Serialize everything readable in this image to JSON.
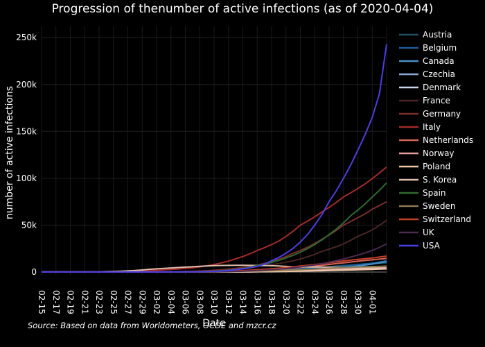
{
  "chart_data": {
    "type": "line",
    "title": "Progression of thenumber of active infections (as of 2020-04-04)",
    "xlabel": "Date",
    "ylabel": "number of active infections",
    "source": "Source: Based on data from Worldometers, OCDE and mzcr.cz",
    "x": [
      "02-15",
      "02-16",
      "02-17",
      "02-18",
      "02-19",
      "02-20",
      "02-21",
      "02-22",
      "02-23",
      "02-24",
      "02-25",
      "02-26",
      "02-27",
      "02-28",
      "02-29",
      "03-01",
      "03-02",
      "03-03",
      "03-04",
      "03-05",
      "03-06",
      "03-07",
      "03-08",
      "03-09",
      "03-10",
      "03-11",
      "03-12",
      "03-13",
      "03-14",
      "03-15",
      "03-16",
      "03-17",
      "03-18",
      "03-19",
      "03-20",
      "03-21",
      "03-22",
      "03-23",
      "03-24",
      "03-25",
      "03-26",
      "03-27",
      "03-28",
      "03-29",
      "03-30",
      "03-31",
      "04-01",
      "04-02",
      "04-03"
    ],
    "x_tick_labels": [
      "02-15",
      "02-17",
      "02-19",
      "02-21",
      "02-23",
      "02-25",
      "02-27",
      "02-29",
      "03-02",
      "03-04",
      "03-06",
      "03-08",
      "03-10",
      "03-12",
      "03-14",
      "03-16",
      "03-18",
      "03-20",
      "03-22",
      "03-24",
      "03-26",
      "03-28",
      "03-30",
      "04-01"
    ],
    "y_ticks": [
      0,
      50000,
      100000,
      150000,
      200000,
      250000
    ],
    "y_tick_labels": [
      "0",
      "50k",
      "100k",
      "150k",
      "200k",
      "250k"
    ],
    "ylim": [
      -3000,
      262000
    ],
    "grid": true,
    "legend_position": "right",
    "series": [
      {
        "name": "Austria",
        "color": "#1f4e5f",
        "key": [
          [
            0,
            0
          ],
          [
            18,
            10
          ],
          [
            25,
            150
          ],
          [
            30,
            800
          ],
          [
            36,
            3000
          ],
          [
            41,
            6500
          ],
          [
            44,
            8000
          ],
          [
            46,
            9200
          ],
          [
            48,
            9800
          ]
        ]
      },
      {
        "name": "Belgium",
        "color": "#1d5d9b",
        "key": [
          [
            0,
            0
          ],
          [
            20,
            50
          ],
          [
            25,
            250
          ],
          [
            30,
            1100
          ],
          [
            36,
            3500
          ],
          [
            41,
            5500
          ],
          [
            44,
            8000
          ],
          [
            46,
            9500
          ],
          [
            48,
            12000
          ]
        ]
      },
      {
        "name": "Canada",
        "color": "#4a90c8",
        "key": [
          [
            0,
            5
          ],
          [
            20,
            30
          ],
          [
            26,
            100
          ],
          [
            31,
            600
          ],
          [
            36,
            1800
          ],
          [
            41,
            4200
          ],
          [
            44,
            6500
          ],
          [
            46,
            8500
          ],
          [
            48,
            11000
          ]
        ]
      },
      {
        "name": "Czechia",
        "color": "#8da8d8",
        "key": [
          [
            0,
            0
          ],
          [
            20,
            5
          ],
          [
            28,
            150
          ],
          [
            33,
            700
          ],
          [
            38,
            1600
          ],
          [
            43,
            2600
          ],
          [
            46,
            3500
          ],
          [
            48,
            4000
          ]
        ]
      },
      {
        "name": "Denmark",
        "color": "#c9d6ea",
        "key": [
          [
            0,
            0
          ],
          [
            21,
            50
          ],
          [
            24,
            500
          ],
          [
            30,
            900
          ],
          [
            36,
            1400
          ],
          [
            41,
            2100
          ],
          [
            46,
            3000
          ],
          [
            48,
            3400
          ]
        ]
      },
      {
        "name": "France",
        "color": "#4a2525",
        "key": [
          [
            0,
            10
          ],
          [
            14,
            60
          ],
          [
            20,
            300
          ],
          [
            25,
            1500
          ],
          [
            30,
            6000
          ],
          [
            35,
            12000
          ],
          [
            39,
            22000
          ],
          [
            42,
            30000
          ],
          [
            44,
            38000
          ],
          [
            46,
            45000
          ],
          [
            48,
            55000
          ]
        ]
      },
      {
        "name": "Germany",
        "color": "#7a2d2d",
        "key": [
          [
            0,
            10
          ],
          [
            14,
            50
          ],
          [
            20,
            600
          ],
          [
            25,
            2500
          ],
          [
            30,
            7500
          ],
          [
            35,
            20000
          ],
          [
            39,
            35000
          ],
          [
            42,
            50000
          ],
          [
            44,
            58000
          ],
          [
            45,
            62000
          ],
          [
            46,
            67000
          ],
          [
            48,
            75000
          ]
        ]
      },
      {
        "name": "Italy",
        "color": "#a52a2a",
        "key": [
          [
            0,
            0
          ],
          [
            6,
            50
          ],
          [
            9,
            250
          ],
          [
            12,
            650
          ],
          [
            15,
            1600
          ],
          [
            18,
            2700
          ],
          [
            21,
            4500
          ],
          [
            24,
            8000
          ],
          [
            27,
            14000
          ],
          [
            30,
            23000
          ],
          [
            33,
            33000
          ],
          [
            36,
            50000
          ],
          [
            39,
            64000
          ],
          [
            42,
            80000
          ],
          [
            45,
            94000
          ],
          [
            48,
            112000
          ]
        ]
      },
      {
        "name": "Netherlands",
        "color": "#d7655a",
        "key": [
          [
            0,
            0
          ],
          [
            19,
            30
          ],
          [
            24,
            600
          ],
          [
            30,
            2000
          ],
          [
            36,
            5000
          ],
          [
            41,
            9000
          ],
          [
            44,
            11500
          ],
          [
            46,
            13000
          ],
          [
            48,
            14500
          ]
        ]
      },
      {
        "name": "Norway",
        "color": "#e8a0a0",
        "key": [
          [
            0,
            0
          ],
          [
            20,
            100
          ],
          [
            25,
            600
          ],
          [
            30,
            1500
          ],
          [
            36,
            2300
          ],
          [
            41,
            3500
          ],
          [
            46,
            4200
          ],
          [
            48,
            4600
          ]
        ]
      },
      {
        "name": "Poland",
        "color": "#f2c9a8",
        "key": [
          [
            0,
            0
          ],
          [
            24,
            20
          ],
          [
            30,
            300
          ],
          [
            36,
            900
          ],
          [
            41,
            1800
          ],
          [
            46,
            2800
          ],
          [
            48,
            3300
          ]
        ]
      },
      {
        "name": "S. Korea",
        "color": "#ddbfae",
        "key": [
          [
            0,
            20
          ],
          [
            4,
            40
          ],
          [
            7,
            150
          ],
          [
            9,
            500
          ],
          [
            11,
            900
          ],
          [
            13,
            1600
          ],
          [
            15,
            2900
          ],
          [
            17,
            3900
          ],
          [
            19,
            4800
          ],
          [
            21,
            5600
          ],
          [
            23,
            6500
          ],
          [
            25,
            7000
          ],
          [
            27,
            7200
          ],
          [
            29,
            7100
          ],
          [
            31,
            6900
          ],
          [
            33,
            6500
          ],
          [
            35,
            5500
          ],
          [
            37,
            5400
          ],
          [
            39,
            5300
          ],
          [
            41,
            4900
          ],
          [
            43,
            4500
          ],
          [
            45,
            4300
          ],
          [
            47,
            4000
          ],
          [
            48,
            3800
          ]
        ]
      },
      {
        "name": "Spain",
        "color": "#2e6b2e",
        "key": [
          [
            0,
            0
          ],
          [
            18,
            80
          ],
          [
            22,
            500
          ],
          [
            26,
            2000
          ],
          [
            30,
            7000
          ],
          [
            34,
            15000
          ],
          [
            37,
            25000
          ],
          [
            40,
            40000
          ],
          [
            43,
            60000
          ],
          [
            46,
            80000
          ],
          [
            48,
            95000
          ]
        ]
      },
      {
        "name": "Sweden",
        "color": "#8c7a50",
        "key": [
          [
            0,
            0
          ],
          [
            20,
            80
          ],
          [
            25,
            500
          ],
          [
            30,
            1100
          ],
          [
            36,
            2500
          ],
          [
            41,
            4500
          ],
          [
            46,
            5800
          ],
          [
            48,
            6300
          ]
        ]
      },
      {
        "name": "Switzerland",
        "color": "#c8402a",
        "key": [
          [
            0,
            0
          ],
          [
            20,
            100
          ],
          [
            25,
            600
          ],
          [
            30,
            2500
          ],
          [
            36,
            6500
          ],
          [
            41,
            11000
          ],
          [
            44,
            13500
          ],
          [
            46,
            15000
          ],
          [
            48,
            17000
          ]
        ]
      },
      {
        "name": "UK",
        "color": "#4d2a50",
        "key": [
          [
            0,
            0
          ],
          [
            22,
            100
          ],
          [
            27,
            700
          ],
          [
            31,
            2000
          ],
          [
            36,
            5500
          ],
          [
            40,
            10500
          ],
          [
            43,
            16000
          ],
          [
            46,
            23000
          ],
          [
            48,
            30000
          ]
        ]
      },
      {
        "name": "USA",
        "color": "#4a3ee6",
        "key": [
          [
            0,
            10
          ],
          [
            20,
            100
          ],
          [
            24,
            700
          ],
          [
            27,
            2500
          ],
          [
            30,
            6000
          ],
          [
            32,
            12000
          ],
          [
            34,
            20000
          ],
          [
            36,
            32000
          ],
          [
            38,
            50000
          ],
          [
            40,
            75000
          ],
          [
            42,
            100000
          ],
          [
            44,
            130000
          ],
          [
            46,
            165000
          ],
          [
            47,
            190000
          ],
          [
            48,
            243000
          ]
        ]
      }
    ]
  }
}
